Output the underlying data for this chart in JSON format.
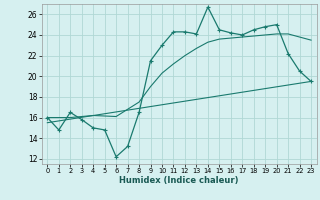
{
  "xlabel": "Humidex (Indice chaleur)",
  "bg_color": "#d6f0f0",
  "grid_color": "#b0d8d5",
  "line_color": "#1a7a6e",
  "xlim": [
    -0.5,
    23.5
  ],
  "ylim": [
    11.5,
    27.0
  ],
  "xticks": [
    0,
    1,
    2,
    3,
    4,
    5,
    6,
    7,
    8,
    9,
    10,
    11,
    12,
    13,
    14,
    15,
    16,
    17,
    18,
    19,
    20,
    21,
    22,
    23
  ],
  "yticks": [
    12,
    14,
    16,
    18,
    20,
    22,
    24,
    26
  ],
  "main_x": [
    0,
    1,
    2,
    3,
    4,
    5,
    6,
    7,
    8,
    9,
    10,
    11,
    12,
    13,
    14,
    15,
    16,
    17,
    18,
    19,
    20,
    21,
    22,
    23
  ],
  "main_y": [
    16.0,
    14.8,
    16.5,
    15.8,
    15.0,
    14.8,
    12.2,
    13.2,
    16.5,
    21.5,
    23.0,
    24.3,
    24.3,
    24.1,
    26.7,
    24.5,
    24.2,
    24.0,
    24.5,
    24.8,
    25.0,
    22.2,
    20.5,
    19.5
  ],
  "trend_x": [
    0,
    23
  ],
  "trend_y": [
    15.5,
    19.5
  ],
  "smooth_x": [
    0,
    2,
    4,
    6,
    8,
    9,
    10,
    11,
    12,
    13,
    14,
    15,
    16,
    17,
    18,
    19,
    20,
    21,
    22,
    23
  ],
  "smooth_y": [
    16.0,
    16.0,
    16.2,
    16.1,
    17.5,
    19.0,
    20.3,
    21.2,
    22.0,
    22.7,
    23.3,
    23.6,
    23.7,
    23.8,
    23.9,
    24.0,
    24.1,
    24.1,
    23.8,
    23.5
  ]
}
